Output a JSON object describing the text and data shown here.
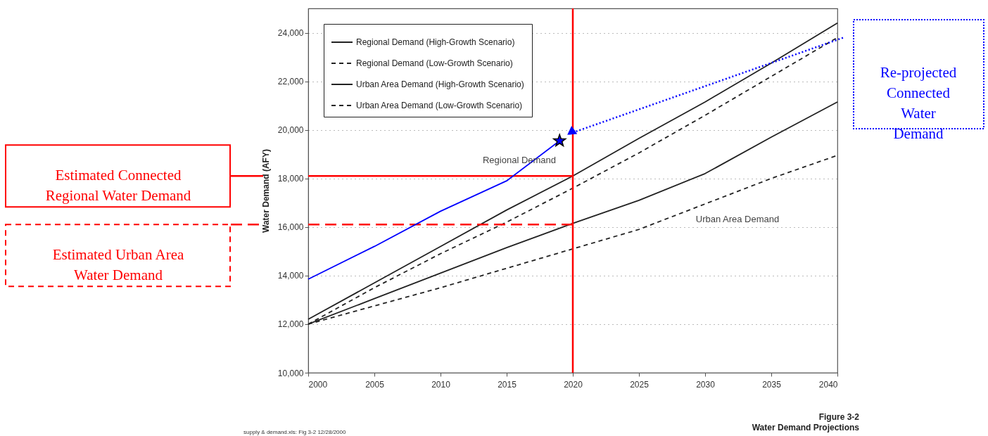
{
  "chart_data": {
    "type": "line",
    "title": "Figure 3-2",
    "subtitle": "Water Demand Projections",
    "ylabel": "Water Demand (AFY)",
    "x": [
      2000,
      2005,
      2010,
      2015,
      2020,
      2025,
      2030,
      2035,
      2040
    ],
    "series": [
      {
        "name": "Regional Demand (High-Growth Scenario)",
        "color": "#222222",
        "line_style": "solid",
        "values": [
          12200,
          13700,
          15200,
          16700,
          18100,
          19650,
          21150,
          22750,
          24400
        ]
      },
      {
        "name": "Regional Demand (Low-Growth Scenario)",
        "color": "#222222",
        "line_style": "dashed",
        "values": [
          12000,
          13500,
          14900,
          16200,
          17600,
          19050,
          20600,
          22200,
          23800
        ]
      },
      {
        "name": "Urban Area Demand (High-Growth Scenario)",
        "color": "#222222",
        "line_style": "solid",
        "values": [
          12000,
          13050,
          14100,
          15150,
          16150,
          17100,
          18200,
          19700,
          21150
        ]
      },
      {
        "name": "Urban Area Demand (Low-Growth Scenario)",
        "color": "#222222",
        "line_style": "dashed",
        "values": [
          12000,
          12750,
          13500,
          14300,
          15100,
          15900,
          16950,
          18000,
          18950
        ]
      },
      {
        "type": "line",
        "color": "#0000ff",
        "line_style": "solid",
        "x": [
          2000,
          2005,
          2010,
          2015,
          2019
        ],
        "values": [
          13850,
          15200,
          16650,
          17900,
          19550
        ]
      },
      {
        "type": "scatter",
        "color": "#0000ff",
        "marker": "star",
        "x": [
          2019
        ],
        "values": [
          19550
        ]
      }
    ],
    "xlim": [
      2000,
      2040
    ],
    "xticks": [
      2000,
      2005,
      2010,
      2015,
      2020,
      2025,
      2030,
      2035,
      2040
    ],
    "ylim": [
      10000,
      25000
    ],
    "yticks": [
      {
        "value": 10000,
        "label": "10,000"
      },
      {
        "value": 12000,
        "label": "12,000"
      },
      {
        "value": 14000,
        "label": "14,000"
      },
      {
        "value": 16000,
        "label": "16,000"
      },
      {
        "value": 18000,
        "label": "18,000"
      },
      {
        "value": 20000,
        "label": "20,000"
      },
      {
        "value": 22000,
        "label": "22,000"
      },
      {
        "value": 24000,
        "label": "24,000"
      }
    ],
    "grid": "y",
    "legend": "top left",
    "ref_lines": [
      {
        "axis": "y",
        "value": 18100,
        "label": "Estimated Connected Regional Water Demand",
        "color": "#ff0000",
        "line_style": "solid"
      },
      {
        "axis": "y",
        "value": 16100,
        "label": "Estimated Urban Area Water Demand",
        "color": "#ff0000",
        "line_style": "dashed"
      },
      {
        "axis": "x",
        "value": 2020,
        "color": "#ff0000",
        "line_style": "solid"
      }
    ],
    "annotations": [
      "Regional Demand",
      "Urban Area  Demand",
      "Re-projected Connected Water Demand",
      "supply & demand.xls: Fig 3-2   12/28/2000"
    ]
  }
}
